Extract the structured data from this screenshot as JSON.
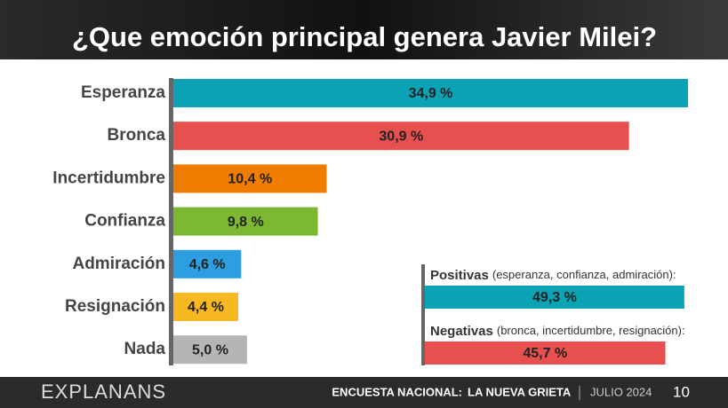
{
  "chart_data": [
    {
      "type": "hbar",
      "title": "¿Que emoción principal genera Javier Milei?",
      "categories": [
        "Esperanza",
        "Bronca",
        "Incertidumbre",
        "Confianza",
        "Admiración",
        "Resignación",
        "Nada"
      ],
      "values": [
        34.9,
        30.9,
        10.4,
        9.8,
        4.6,
        4.4,
        5.0
      ],
      "value_labels": [
        "34,9 %",
        "30,9 %",
        "10,4 %",
        "9,8 %",
        "4,6 %",
        "4,4 %",
        "5,0 %"
      ],
      "colors": [
        "#0aa3b5",
        "#e8504f",
        "#f07c00",
        "#7cb832",
        "#2d9ee0",
        "#f8b822",
        "#b5b5b5"
      ]
    },
    {
      "type": "hbar-inset",
      "categories": [
        "Positivas",
        "Negativas"
      ],
      "descriptions": [
        "(esperanza, confianza, admiración):",
        "(bronca, incertidumbre, resignación):"
      ],
      "values": [
        49.3,
        45.7
      ],
      "value_labels": [
        "49,3 %",
        "45,7 %"
      ],
      "colors": [
        "#0aa3b5",
        "#e8504f"
      ]
    }
  ],
  "footer": {
    "brand": "EXPLANANS",
    "survey": "ENCUESTA NACIONAL:",
    "survey_name": "LA NUEVA GRIETA",
    "date": "JULIO 2024",
    "page": "10"
  }
}
